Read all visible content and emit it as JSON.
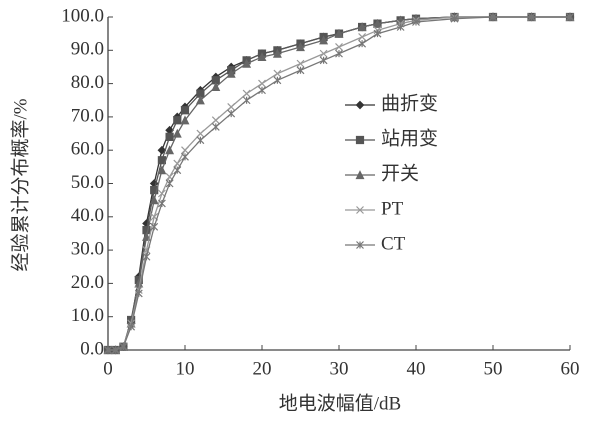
{
  "chart_data": {
    "type": "line",
    "x_label": "地电波幅值/dB",
    "y_label": "经验累计分布概率/%",
    "x": [
      0,
      1,
      2,
      3,
      4,
      5,
      6,
      7,
      8,
      9,
      10,
      12,
      14,
      16,
      18,
      20,
      22,
      25,
      28,
      30,
      33,
      35,
      38,
      40,
      45,
      50,
      55,
      60
    ],
    "series": [
      {
        "name": "曲折变",
        "color": "#333333",
        "marker": "diamond",
        "values": [
          0,
          0,
          1,
          8,
          22,
          38,
          50,
          60,
          66,
          70,
          73,
          78,
          82,
          85,
          87,
          89,
          90,
          92,
          94,
          95,
          97,
          98,
          99,
          99.5,
          100,
          100,
          100,
          100
        ]
      },
      {
        "name": "站用变",
        "color": "#555555",
        "marker": "square",
        "values": [
          0,
          0,
          1,
          9,
          21,
          36,
          48,
          57,
          64,
          69,
          72,
          77,
          81,
          84,
          87,
          89,
          90,
          92,
          94,
          95,
          97,
          98,
          99,
          99.5,
          100,
          100,
          100,
          100
        ]
      },
      {
        "name": "开关",
        "color": "#666666",
        "marker": "triangle",
        "values": [
          0,
          0,
          1,
          8,
          20,
          34,
          45,
          54,
          60,
          65,
          69,
          75,
          79,
          83,
          86,
          88,
          89,
          91,
          93,
          95,
          97,
          98,
          99,
          99.5,
          100,
          100,
          100,
          100
        ]
      },
      {
        "name": "PT",
        "color": "#999999",
        "marker": "x",
        "values": [
          0,
          0,
          1,
          8,
          18,
          30,
          40,
          47,
          52,
          56,
          60,
          65,
          69,
          73,
          77,
          80,
          83,
          86,
          89,
          91,
          94,
          96,
          98,
          99,
          100,
          100,
          100,
          100
        ]
      },
      {
        "name": "CT",
        "color": "#777777",
        "marker": "star",
        "values": [
          0,
          0,
          1,
          7,
          17,
          28,
          37,
          44,
          50,
          54,
          58,
          63,
          67,
          71,
          75,
          78,
          81,
          84,
          87,
          89,
          92,
          95,
          97,
          98.5,
          99.5,
          100,
          100,
          100
        ]
      }
    ],
    "xlim": [
      0,
      60
    ],
    "xticks": [
      0,
      10,
      20,
      30,
      40,
      50,
      60
    ],
    "ylim": [
      0,
      100
    ],
    "yticks": [
      {
        "value": 0,
        "label": "0.0"
      },
      {
        "value": 10,
        "label": "10.0"
      },
      {
        "value": 20,
        "label": "20.0"
      },
      {
        "value": 30,
        "label": "30.0"
      },
      {
        "value": 40,
        "label": "40.0"
      },
      {
        "value": 50,
        "label": "50.0"
      },
      {
        "value": 60,
        "label": "60.0"
      },
      {
        "value": 70,
        "label": "70.0"
      },
      {
        "value": 80,
        "label": "80.0"
      },
      {
        "value": 90,
        "label": "90.0"
      },
      {
        "value": 100,
        "label": "100.0"
      }
    ],
    "grid": false
  }
}
